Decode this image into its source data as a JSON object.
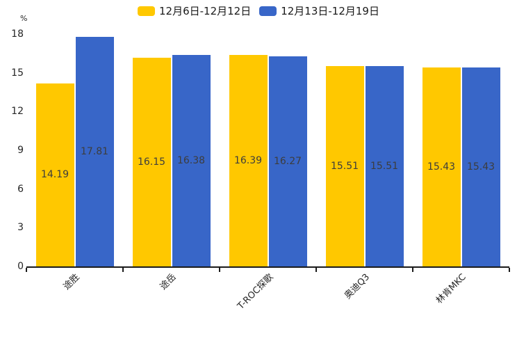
{
  "chart_data": {
    "type": "bar",
    "title": "",
    "categories": [
      "途胜",
      "途岳",
      "T-ROC探歌",
      "奥迪Q3",
      "林肯MKC"
    ],
    "series": [
      {
        "name": "12月6日-12月12日",
        "color": "#FFC800",
        "values": [
          14.19,
          16.15,
          16.39,
          15.51,
          15.43
        ]
      },
      {
        "name": "12月13日-12月19日",
        "color": "#3866C8",
        "values": [
          17.81,
          16.38,
          16.27,
          15.51,
          15.43
        ]
      }
    ],
    "xlabel": "",
    "ylabel": "%",
    "ylim": [
      0,
      18
    ],
    "yticks": [
      0,
      3,
      6,
      9,
      12,
      15,
      18
    ],
    "grid": false,
    "legend_position": "top",
    "value_labels": true,
    "value_label_decimals": 2,
    "x_tick_rotation": 45
  }
}
